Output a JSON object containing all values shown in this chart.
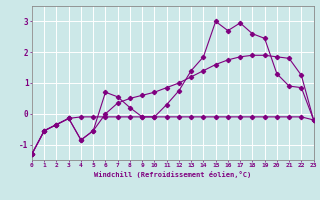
{
  "xlabel": "Windchill (Refroidissement éolien,°C)",
  "bg_color": "#cce8e8",
  "line_color": "#800080",
  "grid_color": "#ffffff",
  "xmin": 0,
  "xmax": 23,
  "ymin": -1.5,
  "ymax": 3.5,
  "yticks": [
    -1,
    0,
    1,
    2,
    3
  ],
  "xticks": [
    0,
    1,
    2,
    3,
    4,
    5,
    6,
    7,
    8,
    9,
    10,
    11,
    12,
    13,
    14,
    15,
    16,
    17,
    18,
    19,
    20,
    21,
    22,
    23
  ],
  "series1_x": [
    0,
    1,
    2,
    3,
    4,
    5,
    6,
    7,
    8,
    9,
    10,
    11,
    12,
    13,
    14,
    15,
    16,
    17,
    18,
    19,
    20,
    21,
    22,
    23
  ],
  "series1_y": [
    -1.3,
    -0.55,
    -0.35,
    -0.15,
    -0.1,
    -0.1,
    -0.1,
    -0.1,
    -0.1,
    -0.1,
    -0.1,
    -0.1,
    -0.1,
    -0.1,
    -0.1,
    -0.1,
    -0.1,
    -0.1,
    -0.1,
    -0.1,
    -0.1,
    -0.1,
    -0.1,
    -0.2
  ],
  "series2_x": [
    0,
    1,
    2,
    3,
    4,
    5,
    6,
    7,
    8,
    9,
    10,
    11,
    12,
    13,
    14,
    15,
    16,
    17,
    18,
    19,
    20,
    21,
    22,
    23
  ],
  "series2_y": [
    -1.3,
    -0.55,
    -0.35,
    -0.15,
    -0.85,
    -0.55,
    0.0,
    0.35,
    0.5,
    0.6,
    0.7,
    0.85,
    1.0,
    1.2,
    1.4,
    1.6,
    1.75,
    1.85,
    1.9,
    1.9,
    1.85,
    1.8,
    1.25,
    -0.2
  ],
  "series3_x": [
    0,
    1,
    2,
    3,
    4,
    5,
    6,
    7,
    8,
    9,
    10,
    11,
    12,
    13,
    14,
    15,
    16,
    17,
    18,
    19,
    20,
    21,
    22,
    23
  ],
  "series3_y": [
    -1.3,
    -0.55,
    -0.35,
    -0.15,
    -0.85,
    -0.55,
    0.7,
    0.55,
    0.2,
    -0.1,
    -0.1,
    0.3,
    0.75,
    1.4,
    1.85,
    3.0,
    2.7,
    2.95,
    2.6,
    2.45,
    1.3,
    0.9,
    0.85,
    -0.2
  ]
}
